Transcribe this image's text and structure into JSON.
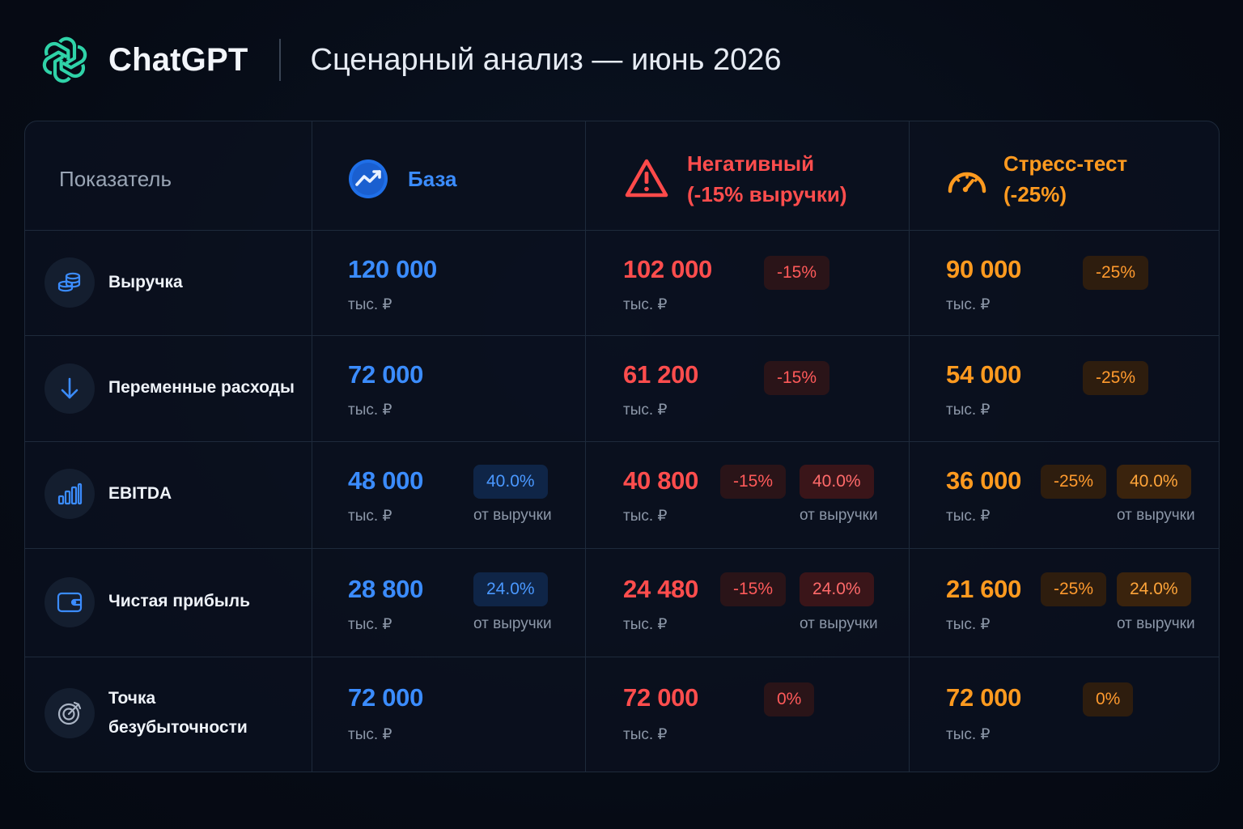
{
  "header": {
    "brand": "ChatGPT",
    "title": "Сценарный анализ — июнь 2026"
  },
  "colors": {
    "base": "#3b8cff",
    "negative": "#ff4d4d",
    "stress": "#ff9a1f",
    "logo": "#2fd3a8"
  },
  "table": {
    "metric_header": "Показатель",
    "scenarios": [
      {
        "icon": "trend-up-icon",
        "title_line1": "База",
        "title_line2": ""
      },
      {
        "icon": "warning-triangle-icon",
        "title_line1": "Негативный",
        "title_line2": "(-15% выручки)"
      },
      {
        "icon": "speedometer-icon",
        "title_line1": "Стресс-тест",
        "title_line2": "(-25%)"
      }
    ],
    "unit": "тыс. ₽",
    "share_label": "от выручки",
    "rows": [
      {
        "icon": "coins-icon",
        "label_line1": "Выручка",
        "label_line2": "",
        "base": {
          "value": "120 000"
        },
        "neg": {
          "value": "102 000",
          "change": "-15%"
        },
        "stress": {
          "value": "90 000",
          "change": "-25%"
        }
      },
      {
        "icon": "arrow-down-icon",
        "label_line1": "Переменные расходы",
        "label_line2": "",
        "base": {
          "value": "72 000"
        },
        "neg": {
          "value": "61 200",
          "change": "-15%"
        },
        "stress": {
          "value": "54 000",
          "change": "-25%"
        }
      },
      {
        "icon": "bar-chart-icon",
        "label_line1": "EBITDA",
        "label_line2": "",
        "base": {
          "value": "48 000",
          "share": "40.0%"
        },
        "neg": {
          "value": "40 800",
          "change": "-15%",
          "share": "40.0%"
        },
        "stress": {
          "value": "36 000",
          "change": "-25%",
          "share": "40.0%"
        }
      },
      {
        "icon": "wallet-icon",
        "label_line1": "Чистая прибыль",
        "label_line2": "",
        "base": {
          "value": "28 800",
          "share": "24.0%"
        },
        "neg": {
          "value": "24 480",
          "change": "-15%",
          "share": "24.0%"
        },
        "stress": {
          "value": "21 600",
          "change": "-25%",
          "share": "24.0%"
        }
      },
      {
        "icon": "target-icon",
        "label_line1": "Точка",
        "label_line2": "безубыточности",
        "base": {
          "value": "72 000"
        },
        "neg": {
          "value": "72 000",
          "change": "0%"
        },
        "stress": {
          "value": "72 000",
          "change": "0%"
        }
      }
    ]
  }
}
